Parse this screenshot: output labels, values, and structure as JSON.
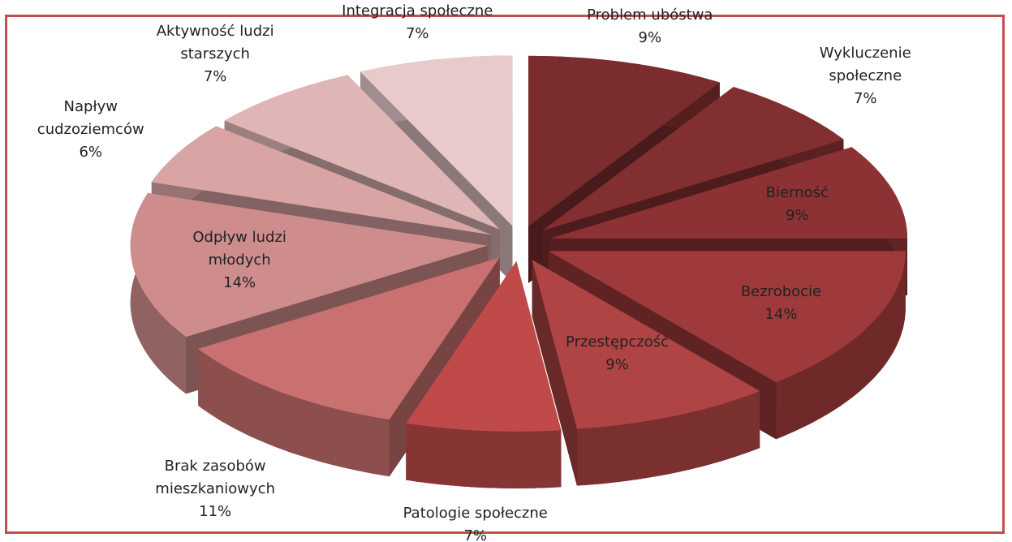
{
  "chart_data": {
    "type": "pie3d",
    "categories": [
      "Problem ubóstwa",
      "Wykluczenie społeczne",
      "Bierność",
      "Bezrobocie",
      "Przestępczość",
      "Patologie społeczne",
      "Brak zasobów mieszkaniowych",
      "Odpływ ludzi młodych",
      "Napływ cudzoziemców",
      "Aktywność ludzi starszych",
      "Integracja społeczne"
    ],
    "values": [
      9,
      7,
      9,
      14,
      9,
      7,
      11,
      14,
      6,
      7,
      7
    ],
    "value_labels": [
      "9%",
      "7%",
      "9%",
      "14%",
      "9%",
      "7%",
      "11%",
      "14%",
      "6%",
      "7%",
      "7%"
    ],
    "colors": [
      "#7a2c2e",
      "#822f31",
      "#8c3234",
      "#9e3a3b",
      "#b04444",
      "#c04a4a",
      "#c87170",
      "#cf8c8c",
      "#d9a4a4",
      "#dfb5b5",
      "#e8cacb"
    ]
  }
}
